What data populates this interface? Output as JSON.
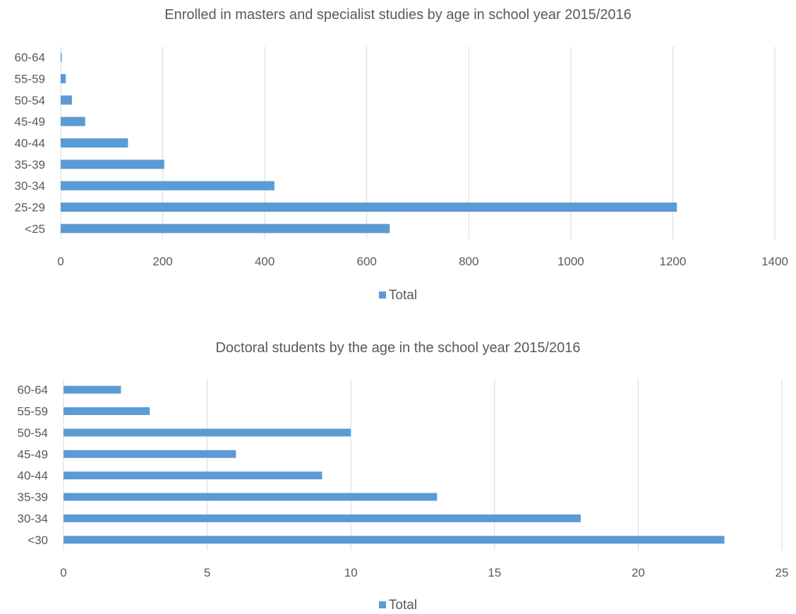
{
  "charts": [
    {
      "chart_data": {
        "type": "bar",
        "orientation": "horizontal",
        "title": "Enrolled in masters and specialist studies  by age in school year 2015/2016",
        "categories": [
          "<25",
          "25-29",
          "30-34",
          "35-39",
          "40-44",
          "45-49",
          "50-54",
          "55-59",
          "60-64"
        ],
        "series": [
          {
            "name": "Total",
            "values": [
              645,
              1208,
              419,
              203,
              132,
              48,
              22,
              10,
              2
            ]
          }
        ],
        "xlim": [
          0,
          1400
        ],
        "xticks": [
          "0",
          "200",
          "400",
          "600",
          "800",
          "1000",
          "1200",
          "1400"
        ],
        "grid": "vertical",
        "legend_position": "bottom"
      },
      "legend_label": "Total",
      "color": "#5b9bd5"
    },
    {
      "chart_data": {
        "type": "bar",
        "orientation": "horizontal",
        "title": "Doctoral students by the age in the school year 2015/2016",
        "categories": [
          "<30",
          "30-34",
          "35-39",
          "40-44",
          "45-49",
          "50-54",
          "55-59",
          "60-64"
        ],
        "series": [
          {
            "name": "Total",
            "values": [
              23,
              18,
              13,
              9,
              6,
              10,
              3,
              2
            ]
          }
        ],
        "xlim": [
          0,
          25
        ],
        "xticks": [
          "0",
          "5",
          "10",
          "15",
          "20",
          "25"
        ],
        "grid": "vertical",
        "legend_position": "bottom"
      },
      "legend_label": "Total",
      "color": "#5b9bd5"
    }
  ]
}
